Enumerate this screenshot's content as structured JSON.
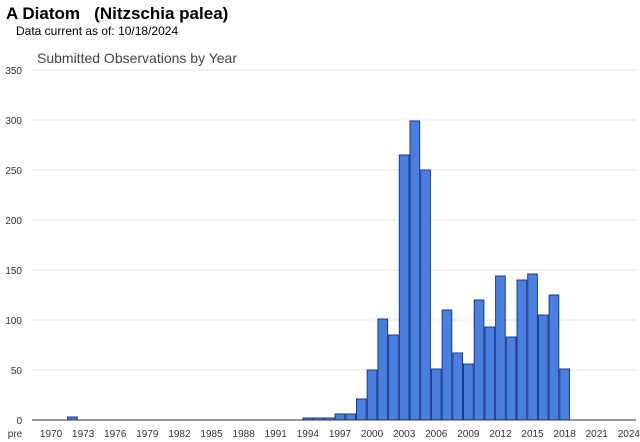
{
  "header": {
    "title": "A Diatom   (Nitzschia palea)",
    "data_current_label": "Data current as of:",
    "data_current_date": "10/18/2024"
  },
  "chart_data": {
    "type": "bar",
    "title": "Submitted Observations by Year",
    "xlabel": "",
    "ylabel": "",
    "ylim": [
      0,
      350
    ],
    "yticks": [
      0,
      50,
      100,
      150,
      200,
      250,
      300,
      350
    ],
    "grid": true,
    "legend": "none",
    "bar_color": "#4a7fe0",
    "bar_edge_color": "#1a3a8a",
    "grid_color": "#e3e3e3",
    "categories": [
      "pre 1970",
      "1970",
      "1971",
      "1972",
      "1973",
      "1974",
      "1975",
      "1976",
      "1977",
      "1978",
      "1979",
      "1980",
      "1981",
      "1982",
      "1983",
      "1984",
      "1985",
      "1986",
      "1987",
      "1988",
      "1989",
      "1990",
      "1991",
      "1992",
      "1993",
      "1994",
      "1995",
      "1996",
      "1997",
      "1998",
      "1999",
      "2000",
      "2001",
      "2002",
      "2003",
      "2004",
      "2005",
      "2006",
      "2007",
      "2008",
      "2009",
      "2010",
      "2011",
      "2012",
      "2013",
      "2014",
      "2015",
      "2016",
      "2017",
      "2018",
      "2019",
      "2020",
      "2021",
      "2022",
      "2023",
      "2024"
    ],
    "tick_labels": [
      "pre",
      "1970",
      "1973",
      "1976",
      "1979",
      "1982",
      "1985",
      "1988",
      "1991",
      "1994",
      "1997",
      "2000",
      "2003",
      "2006",
      "2009",
      "2012",
      "2015",
      "2018",
      "2021",
      "2024"
    ],
    "values": [
      0,
      0,
      0,
      3,
      0,
      0,
      0,
      0,
      0,
      0,
      0,
      0,
      0,
      0,
      0,
      0,
      0,
      0,
      0,
      0,
      0,
      0,
      0,
      0,
      0,
      2,
      2,
      2,
      6,
      6,
      21,
      50,
      101,
      85,
      265,
      299,
      250,
      51,
      110,
      67,
      56,
      120,
      93,
      144,
      83,
      140,
      146,
      105,
      125,
      51,
      0,
      0,
      0,
      0,
      0,
      0
    ]
  }
}
